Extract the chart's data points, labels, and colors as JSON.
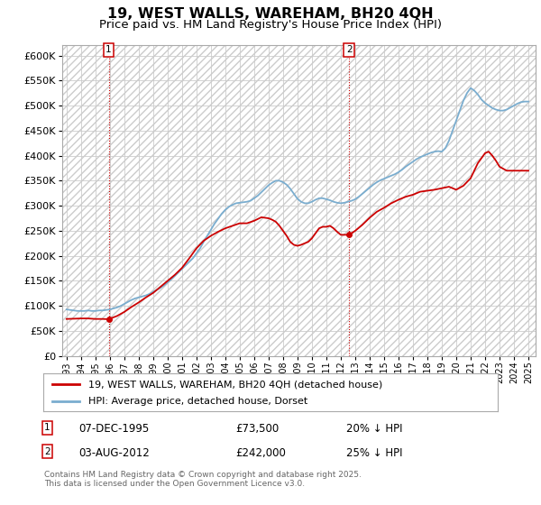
{
  "title": "19, WEST WALLS, WAREHAM, BH20 4QH",
  "subtitle": "Price paid vs. HM Land Registry's House Price Index (HPI)",
  "background_color": "#ffffff",
  "grid_color": "#cccccc",
  "hatch_color": "#cccccc",
  "title_fontsize": 11.5,
  "subtitle_fontsize": 9.5,
  "legend_entries": [
    "19, WEST WALLS, WAREHAM, BH20 4QH (detached house)",
    "HPI: Average price, detached house, Dorset"
  ],
  "prop_color": "#cc0000",
  "hpi_color": "#7aadcf",
  "ann1_x": 1995.92,
  "ann1_y": 73500,
  "ann1_label": "1",
  "ann1_date": "07-DEC-1995",
  "ann1_price": "£73,500",
  "ann1_note": "20% ↓ HPI",
  "ann2_x": 2012.58,
  "ann2_y": 242000,
  "ann2_label": "2",
  "ann2_date": "03-AUG-2012",
  "ann2_price": "£242,000",
  "ann2_note": "25% ↓ HPI",
  "footer": "Contains HM Land Registry data © Crown copyright and database right 2025.\nThis data is licensed under the Open Government Licence v3.0.",
  "ylim": [
    0,
    620000
  ],
  "xlim_left": 1992.7,
  "xlim_right": 2025.5,
  "yticks": [
    0,
    50000,
    100000,
    150000,
    200000,
    250000,
    300000,
    350000,
    400000,
    450000,
    500000,
    550000,
    600000
  ],
  "ytick_labels": [
    "£0",
    "£50K",
    "£100K",
    "£150K",
    "£200K",
    "£250K",
    "£300K",
    "£350K",
    "£400K",
    "£450K",
    "£500K",
    "£550K",
    "£600K"
  ],
  "xtick_years": [
    1993,
    1994,
    1995,
    1996,
    1997,
    1998,
    1999,
    2000,
    2001,
    2002,
    2003,
    2004,
    2005,
    2006,
    2007,
    2008,
    2009,
    2010,
    2011,
    2012,
    2013,
    2014,
    2015,
    2016,
    2017,
    2018,
    2019,
    2020,
    2021,
    2022,
    2023,
    2024,
    2025
  ],
  "hpi_years": [
    1993.0,
    1993.25,
    1993.5,
    1993.75,
    1994.0,
    1994.25,
    1994.5,
    1994.75,
    1995.0,
    1995.25,
    1995.5,
    1995.75,
    1996.0,
    1996.25,
    1996.5,
    1996.75,
    1997.0,
    1997.25,
    1997.5,
    1997.75,
    1998.0,
    1998.25,
    1998.5,
    1998.75,
    1999.0,
    1999.25,
    1999.5,
    1999.75,
    2000.0,
    2000.25,
    2000.5,
    2000.75,
    2001.0,
    2001.25,
    2001.5,
    2001.75,
    2002.0,
    2002.25,
    2002.5,
    2002.75,
    2003.0,
    2003.25,
    2003.5,
    2003.75,
    2004.0,
    2004.25,
    2004.5,
    2004.75,
    2005.0,
    2005.25,
    2005.5,
    2005.75,
    2006.0,
    2006.25,
    2006.5,
    2006.75,
    2007.0,
    2007.25,
    2007.5,
    2007.75,
    2008.0,
    2008.25,
    2008.5,
    2008.75,
    2009.0,
    2009.25,
    2009.5,
    2009.75,
    2010.0,
    2010.25,
    2010.5,
    2010.75,
    2011.0,
    2011.25,
    2011.5,
    2011.75,
    2012.0,
    2012.25,
    2012.5,
    2012.75,
    2013.0,
    2013.25,
    2013.5,
    2013.75,
    2014.0,
    2014.25,
    2014.5,
    2014.75,
    2015.0,
    2015.25,
    2015.5,
    2015.75,
    2016.0,
    2016.25,
    2016.5,
    2016.75,
    2017.0,
    2017.25,
    2017.5,
    2017.75,
    2018.0,
    2018.25,
    2018.5,
    2018.75,
    2019.0,
    2019.25,
    2019.5,
    2019.75,
    2020.0,
    2020.25,
    2020.5,
    2020.75,
    2021.0,
    2021.25,
    2021.5,
    2021.75,
    2022.0,
    2022.25,
    2022.5,
    2022.75,
    2023.0,
    2023.25,
    2023.5,
    2023.75,
    2024.0,
    2024.25,
    2024.5,
    2024.75,
    2025.0
  ],
  "hpi_values": [
    93000,
    92000,
    91000,
    90000,
    90000,
    90000,
    91000,
    90000,
    90000,
    91000,
    91000,
    92000,
    93000,
    95000,
    97000,
    100000,
    104000,
    108000,
    112000,
    115000,
    117000,
    119000,
    121000,
    124000,
    128000,
    132000,
    136000,
    141000,
    147000,
    153000,
    160000,
    167000,
    174000,
    181000,
    188000,
    195000,
    205000,
    215000,
    228000,
    240000,
    252000,
    264000,
    274000,
    284000,
    292000,
    298000,
    302000,
    305000,
    306000,
    307000,
    308000,
    310000,
    315000,
    320000,
    327000,
    334000,
    341000,
    346000,
    350000,
    350000,
    347000,
    342000,
    334000,
    324000,
    314000,
    308000,
    305000,
    305000,
    308000,
    312000,
    315000,
    315000,
    313000,
    311000,
    308000,
    306000,
    305000,
    306000,
    308000,
    310000,
    313000,
    318000,
    324000,
    330000,
    336000,
    342000,
    347000,
    351000,
    354000,
    357000,
    360000,
    363000,
    367000,
    372000,
    378000,
    383000,
    388000,
    393000,
    397000,
    400000,
    403000,
    406000,
    408000,
    409000,
    408000,
    415000,
    430000,
    450000,
    470000,
    490000,
    510000,
    525000,
    535000,
    530000,
    522000,
    512000,
    505000,
    500000,
    495000,
    492000,
    490000,
    490000,
    492000,
    496000,
    500000,
    504000,
    507000,
    508000,
    508000
  ],
  "prop_years": [
    1993.0,
    1993.5,
    1994.0,
    1994.5,
    1995.0,
    1995.5,
    1995.92,
    1996.5,
    1997.0,
    1997.5,
    1998.0,
    1998.5,
    1999.0,
    1999.5,
    2000.0,
    2000.5,
    2001.0,
    2001.5,
    2002.0,
    2002.5,
    2003.0,
    2003.5,
    2004.0,
    2004.5,
    2005.0,
    2005.5,
    2006.0,
    2006.5,
    2007.0,
    2007.25,
    2007.5,
    2007.75,
    2008.0,
    2008.25,
    2008.5,
    2008.75,
    2009.0,
    2009.25,
    2009.5,
    2009.75,
    2010.0,
    2010.25,
    2010.5,
    2010.75,
    2011.0,
    2011.25,
    2011.5,
    2011.75,
    2012.0,
    2012.25,
    2012.58,
    2013.0,
    2013.5,
    2014.0,
    2014.5,
    2015.0,
    2015.5,
    2016.0,
    2016.5,
    2017.0,
    2017.5,
    2018.0,
    2018.5,
    2019.0,
    2019.5,
    2020.0,
    2020.5,
    2021.0,
    2021.25,
    2021.5,
    2021.75,
    2022.0,
    2022.25,
    2022.5,
    2022.75,
    2023.0,
    2023.5,
    2024.0,
    2024.5,
    2025.0
  ],
  "prop_values": [
    74000,
    74500,
    75000,
    75000,
    74000,
    74000,
    73500,
    80000,
    88000,
    98000,
    107000,
    117000,
    126000,
    138000,
    150000,
    162000,
    176000,
    195000,
    215000,
    230000,
    240000,
    248000,
    255000,
    260000,
    265000,
    265000,
    270000,
    277000,
    275000,
    272000,
    268000,
    260000,
    250000,
    240000,
    228000,
    222000,
    220000,
    222000,
    225000,
    228000,
    235000,
    245000,
    255000,
    258000,
    258000,
    260000,
    255000,
    248000,
    242000,
    242000,
    242000,
    250000,
    262000,
    276000,
    288000,
    296000,
    305000,
    312000,
    318000,
    322000,
    328000,
    330000,
    332000,
    335000,
    338000,
    332000,
    340000,
    355000,
    370000,
    385000,
    395000,
    405000,
    408000,
    400000,
    390000,
    378000,
    370000,
    370000,
    370000,
    370000
  ]
}
